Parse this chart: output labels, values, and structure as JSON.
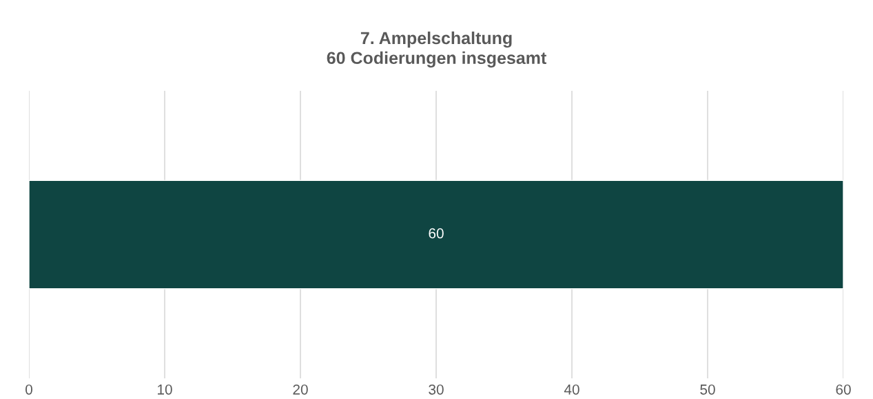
{
  "chart_data": {
    "type": "bar",
    "orientation": "horizontal",
    "title": "7. Ampelschaltung\n60 Codierungen insgesamt",
    "categories": [
      null
    ],
    "values": [
      60
    ],
    "color": "#0f4542",
    "xlim": [
      0,
      60
    ],
    "xticks": [
      0,
      10,
      20,
      30,
      40,
      50,
      60
    ],
    "grid": "x",
    "data_labels": true
  }
}
